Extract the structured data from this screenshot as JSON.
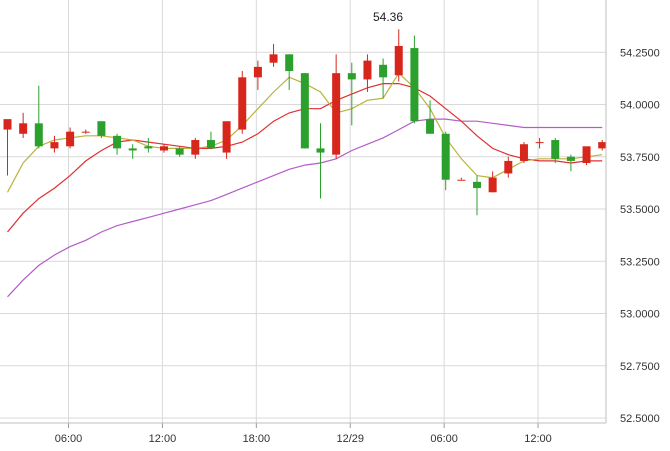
{
  "chart_data": {
    "type": "candlestick",
    "ylim": [
      52.5,
      54.5
    ],
    "y_ticks": [
      "54.2500",
      "54.0000",
      "53.7500",
      "53.5000",
      "53.2500",
      "53.0000",
      "52.7500",
      "52.5000"
    ],
    "x_ticks": [
      "06:00",
      "12:00",
      "18:00",
      "12/29",
      "06:00",
      "12:00"
    ],
    "grid": true,
    "annotation": "54.36",
    "colors": {
      "up": "#d7261b",
      "down": "#2ca02c",
      "ma_fast": "#b7b43a",
      "ma_mid": "#e03030",
      "ma_slow": "#b45cc8",
      "grid": "#d9d9d9"
    },
    "candles": [
      {
        "o": 53.88,
        "h": 53.92,
        "l": 53.66,
        "c": 53.93
      },
      {
        "o": 53.86,
        "h": 53.96,
        "l": 53.84,
        "c": 53.91
      },
      {
        "o": 53.91,
        "h": 54.09,
        "l": 53.79,
        "c": 53.8
      },
      {
        "o": 53.79,
        "h": 53.85,
        "l": 53.77,
        "c": 53.82
      },
      {
        "o": 53.8,
        "h": 53.89,
        "l": 53.79,
        "c": 53.87
      },
      {
        "o": 53.87,
        "h": 53.88,
        "l": 53.86,
        "c": 53.87
      },
      {
        "o": 53.92,
        "h": 53.92,
        "l": 53.84,
        "c": 53.85
      },
      {
        "o": 53.85,
        "h": 53.86,
        "l": 53.76,
        "c": 53.79
      },
      {
        "o": 53.79,
        "h": 53.81,
        "l": 53.74,
        "c": 53.78
      },
      {
        "o": 53.8,
        "h": 53.84,
        "l": 53.77,
        "c": 53.79
      },
      {
        "o": 53.78,
        "h": 53.81,
        "l": 53.77,
        "c": 53.8
      },
      {
        "o": 53.79,
        "h": 53.8,
        "l": 53.75,
        "c": 53.76
      },
      {
        "o": 53.76,
        "h": 53.84,
        "l": 53.74,
        "c": 53.83
      },
      {
        "o": 53.83,
        "h": 53.87,
        "l": 53.79,
        "c": 53.79
      },
      {
        "o": 53.77,
        "h": 53.91,
        "l": 53.74,
        "c": 53.92
      },
      {
        "o": 53.88,
        "h": 54.16,
        "l": 53.86,
        "c": 54.13
      },
      {
        "o": 54.13,
        "h": 54.21,
        "l": 54.07,
        "c": 54.18
      },
      {
        "o": 54.2,
        "h": 54.29,
        "l": 54.18,
        "c": 54.24
      },
      {
        "o": 54.24,
        "h": 54.24,
        "l": 54.07,
        "c": 54.16
      },
      {
        "o": 54.15,
        "h": 54.15,
        "l": 53.79,
        "c": 53.79
      },
      {
        "o": 53.79,
        "h": 53.91,
        "l": 53.55,
        "c": 53.77
      },
      {
        "o": 53.76,
        "h": 54.24,
        "l": 53.74,
        "c": 54.15
      },
      {
        "o": 54.15,
        "h": 54.2,
        "l": 53.9,
        "c": 54.12
      },
      {
        "o": 54.12,
        "h": 54.24,
        "l": 54.06,
        "c": 54.21
      },
      {
        "o": 54.19,
        "h": 54.22,
        "l": 54.03,
        "c": 54.13
      },
      {
        "o": 54.14,
        "h": 54.36,
        "l": 54.11,
        "c": 54.28
      },
      {
        "o": 54.27,
        "h": 54.33,
        "l": 53.91,
        "c": 53.92
      },
      {
        "o": 53.93,
        "h": 54.02,
        "l": 53.86,
        "c": 53.86
      },
      {
        "o": 53.86,
        "h": 53.87,
        "l": 53.59,
        "c": 53.64
      },
      {
        "o": 53.64,
        "h": 53.65,
        "l": 53.64,
        "c": 53.64
      },
      {
        "o": 53.63,
        "h": 53.66,
        "l": 53.47,
        "c": 53.6
      },
      {
        "o": 53.58,
        "h": 53.68,
        "l": 53.58,
        "c": 53.65
      },
      {
        "o": 53.67,
        "h": 53.75,
        "l": 53.65,
        "c": 53.73
      },
      {
        "o": 53.73,
        "h": 53.82,
        "l": 53.72,
        "c": 53.81
      },
      {
        "o": 53.82,
        "h": 53.84,
        "l": 53.79,
        "c": 53.82
      },
      {
        "o": 53.83,
        "h": 53.84,
        "l": 53.72,
        "c": 53.74
      },
      {
        "o": 53.75,
        "h": 53.76,
        "l": 53.68,
        "c": 53.73
      },
      {
        "o": 53.72,
        "h": 53.79,
        "l": 53.71,
        "c": 53.8
      },
      {
        "o": 53.79,
        "h": 53.83,
        "l": 53.78,
        "c": 53.82
      }
    ],
    "ma_fast": [
      53.58,
      53.72,
      53.8,
      53.83,
      53.84,
      53.85,
      53.85,
      53.84,
      53.83,
      53.8,
      53.79,
      53.79,
      53.79,
      53.8,
      53.83,
      53.9,
      53.98,
      54.06,
      54.13,
      54.1,
      54.06,
      53.96,
      53.98,
      54.02,
      54.03,
      54.15,
      54.08,
      53.98,
      53.84,
      53.74,
      53.66,
      53.65,
      53.69,
      53.73,
      53.74,
      53.74,
      53.74,
      53.75,
      53.76
    ],
    "ma_mid": [
      53.39,
      53.48,
      53.55,
      53.6,
      53.66,
      53.73,
      53.78,
      53.82,
      53.83,
      53.82,
      53.81,
      53.8,
      53.79,
      53.79,
      53.8,
      53.82,
      53.86,
      53.92,
      53.96,
      53.98,
      53.98,
      54.02,
      54.05,
      54.08,
      54.1,
      54.1,
      54.08,
      54.04,
      53.98,
      53.92,
      53.85,
      53.79,
      53.76,
      53.74,
      53.73,
      53.73,
      53.72,
      53.73,
      53.73
    ],
    "ma_slow": [
      53.08,
      53.16,
      53.23,
      53.28,
      53.32,
      53.35,
      53.39,
      53.42,
      53.44,
      53.46,
      53.48,
      53.5,
      53.52,
      53.54,
      53.57,
      53.6,
      53.63,
      53.66,
      53.69,
      53.71,
      53.72,
      53.74,
      53.78,
      53.81,
      53.84,
      53.88,
      53.92,
      53.93,
      53.93,
      53.92,
      53.92,
      53.91,
      53.9,
      53.89,
      53.89,
      53.89,
      53.89,
      53.89,
      53.89
    ]
  }
}
